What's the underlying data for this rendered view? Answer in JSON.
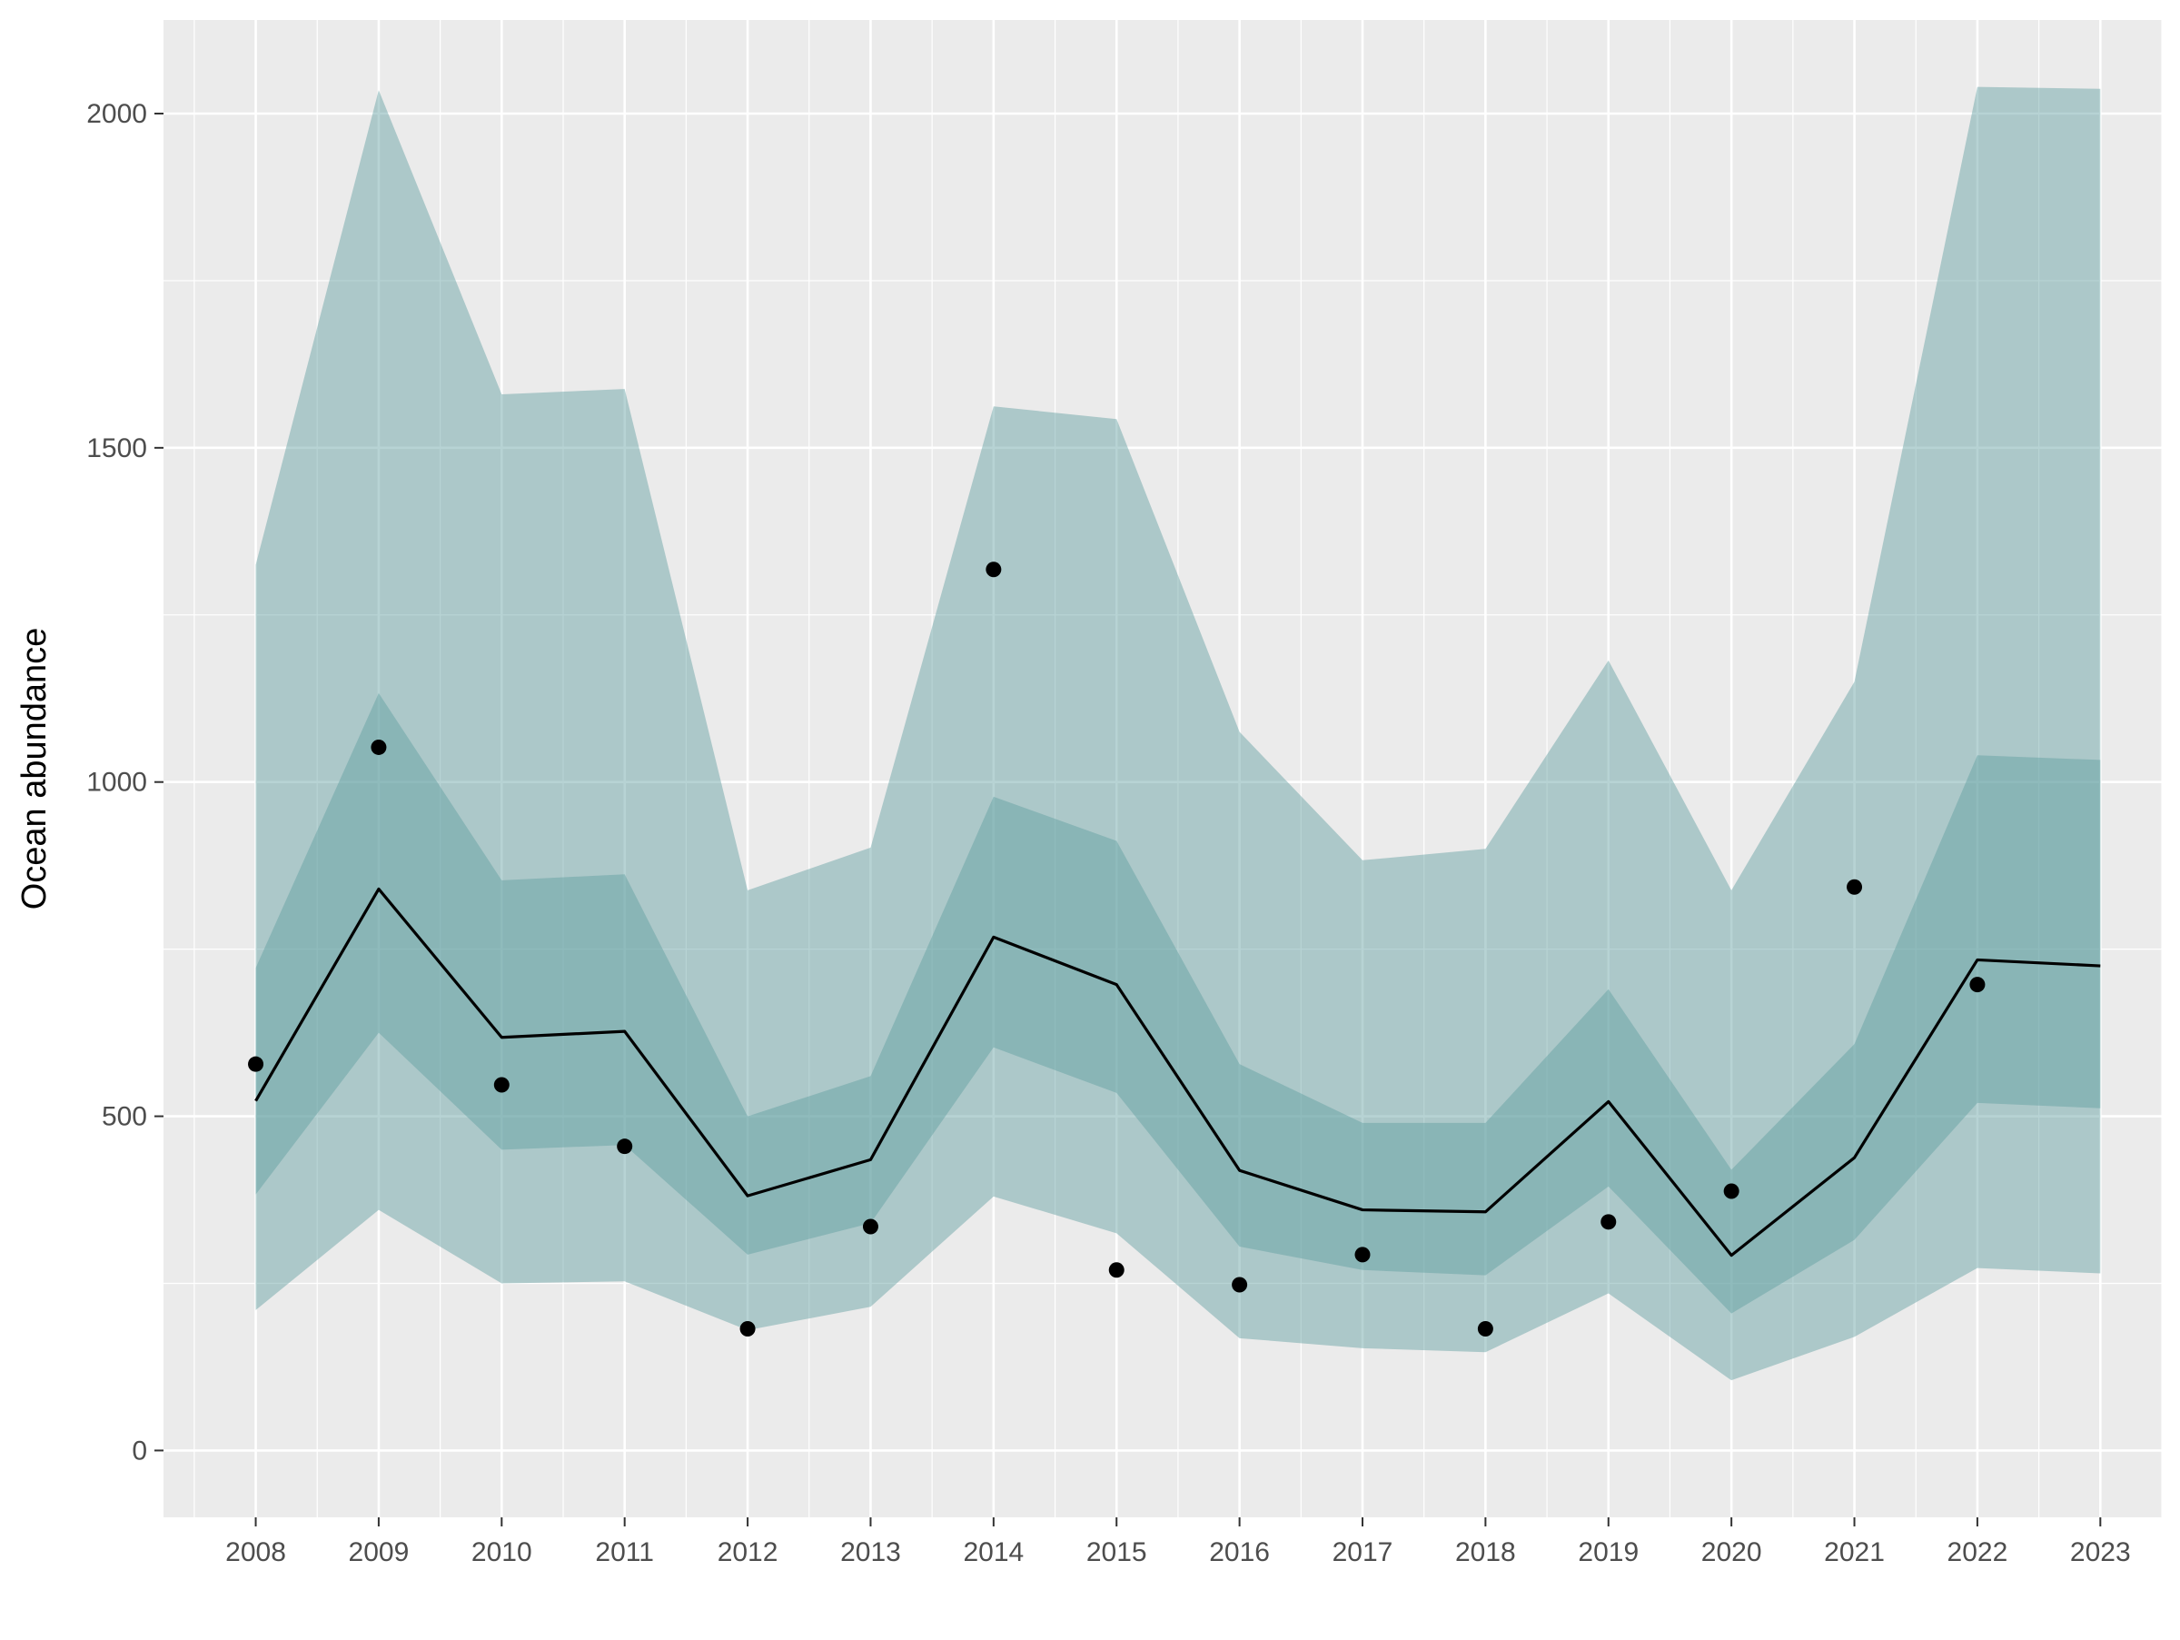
{
  "chart_data": {
    "type": "line",
    "title": "",
    "xlabel": "",
    "ylabel": "Ocean abundance",
    "x": [
      2008,
      2009,
      2010,
      2011,
      2012,
      2013,
      2014,
      2015,
      2016,
      2017,
      2018,
      2019,
      2020,
      2021,
      2022,
      2023
    ],
    "xlim": [
      2007.25,
      2023.5
    ],
    "ylim": [
      -100,
      2140
    ],
    "y_ticks": [
      0,
      500,
      1000,
      1500,
      2000
    ],
    "grid": true,
    "legend": "none",
    "series": [
      {
        "role": "outer_interval",
        "lower": [
          210,
          360,
          250,
          253,
          180,
          215,
          380,
          325,
          168,
          153,
          147,
          235,
          105,
          170,
          273,
          265
        ],
        "upper": [
          1325,
          2035,
          1580,
          1588,
          838,
          902,
          1562,
          1543,
          1075,
          883,
          900,
          1182,
          838,
          1150,
          2040,
          2037
        ]
      },
      {
        "role": "inner_interval",
        "lower": [
          383,
          625,
          450,
          457,
          293,
          340,
          603,
          535,
          305,
          270,
          262,
          395,
          205,
          315,
          520,
          512
        ],
        "upper": [
          722,
          1133,
          853,
          862,
          500,
          560,
          978,
          912,
          578,
          490,
          490,
          690,
          420,
          608,
          1040,
          1033
        ]
      },
      {
        "role": "estimate_line",
        "values": [
          523,
          840,
          618,
          627,
          381,
          435,
          768,
          697,
          419,
          360,
          357,
          522,
          292,
          438,
          734,
          725
        ]
      },
      {
        "role": "observed_points",
        "values": [
          578,
          1052,
          547,
          455,
          182,
          335,
          1318,
          270,
          248,
          293,
          182,
          342,
          388,
          843,
          697,
          null
        ]
      }
    ],
    "colors": {
      "panel_background": "#ebebeb",
      "grid_major": "#ffffff",
      "band_fill": "#5f9ea0",
      "line": "#000000",
      "points": "#000000",
      "tick_text": "#4d4d4d",
      "tick_mark": "#333333"
    }
  }
}
